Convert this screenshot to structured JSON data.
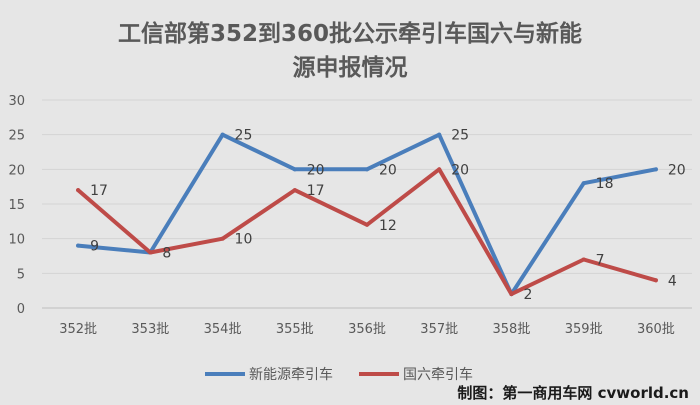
{
  "chart_data": {
    "type": "line",
    "title_line1": "工信部第352到360批公示牵引车国六与新能",
    "title_line2": "源申报情况",
    "categories": [
      "352批",
      "353批",
      "354批",
      "355批",
      "356批",
      "357批",
      "358批",
      "359批",
      "360批"
    ],
    "series": [
      {
        "name": "新能源牵引车",
        "color": "#4a7ebb",
        "values": [
          9,
          8,
          25,
          20,
          20,
          25,
          2,
          18,
          20
        ],
        "labels": [
          "9",
          "",
          "25",
          "20",
          "20",
          "25",
          "",
          "18",
          "20"
        ]
      },
      {
        "name": "国六牵引车",
        "color": "#be4b48",
        "values": [
          17,
          8,
          10,
          17,
          12,
          20,
          2,
          7,
          4
        ],
        "labels": [
          "17",
          "8",
          "10",
          "17",
          "12",
          "20",
          "2",
          "7",
          "4"
        ]
      }
    ],
    "yticks": [
      "0",
      "5",
      "10",
      "15",
      "20",
      "25",
      "30"
    ],
    "ylim": [
      0,
      30
    ],
    "grid": true,
    "legend_position": "bottom"
  },
  "footer": {
    "credit": "制图：第一商用车网 cvworld.cn"
  }
}
